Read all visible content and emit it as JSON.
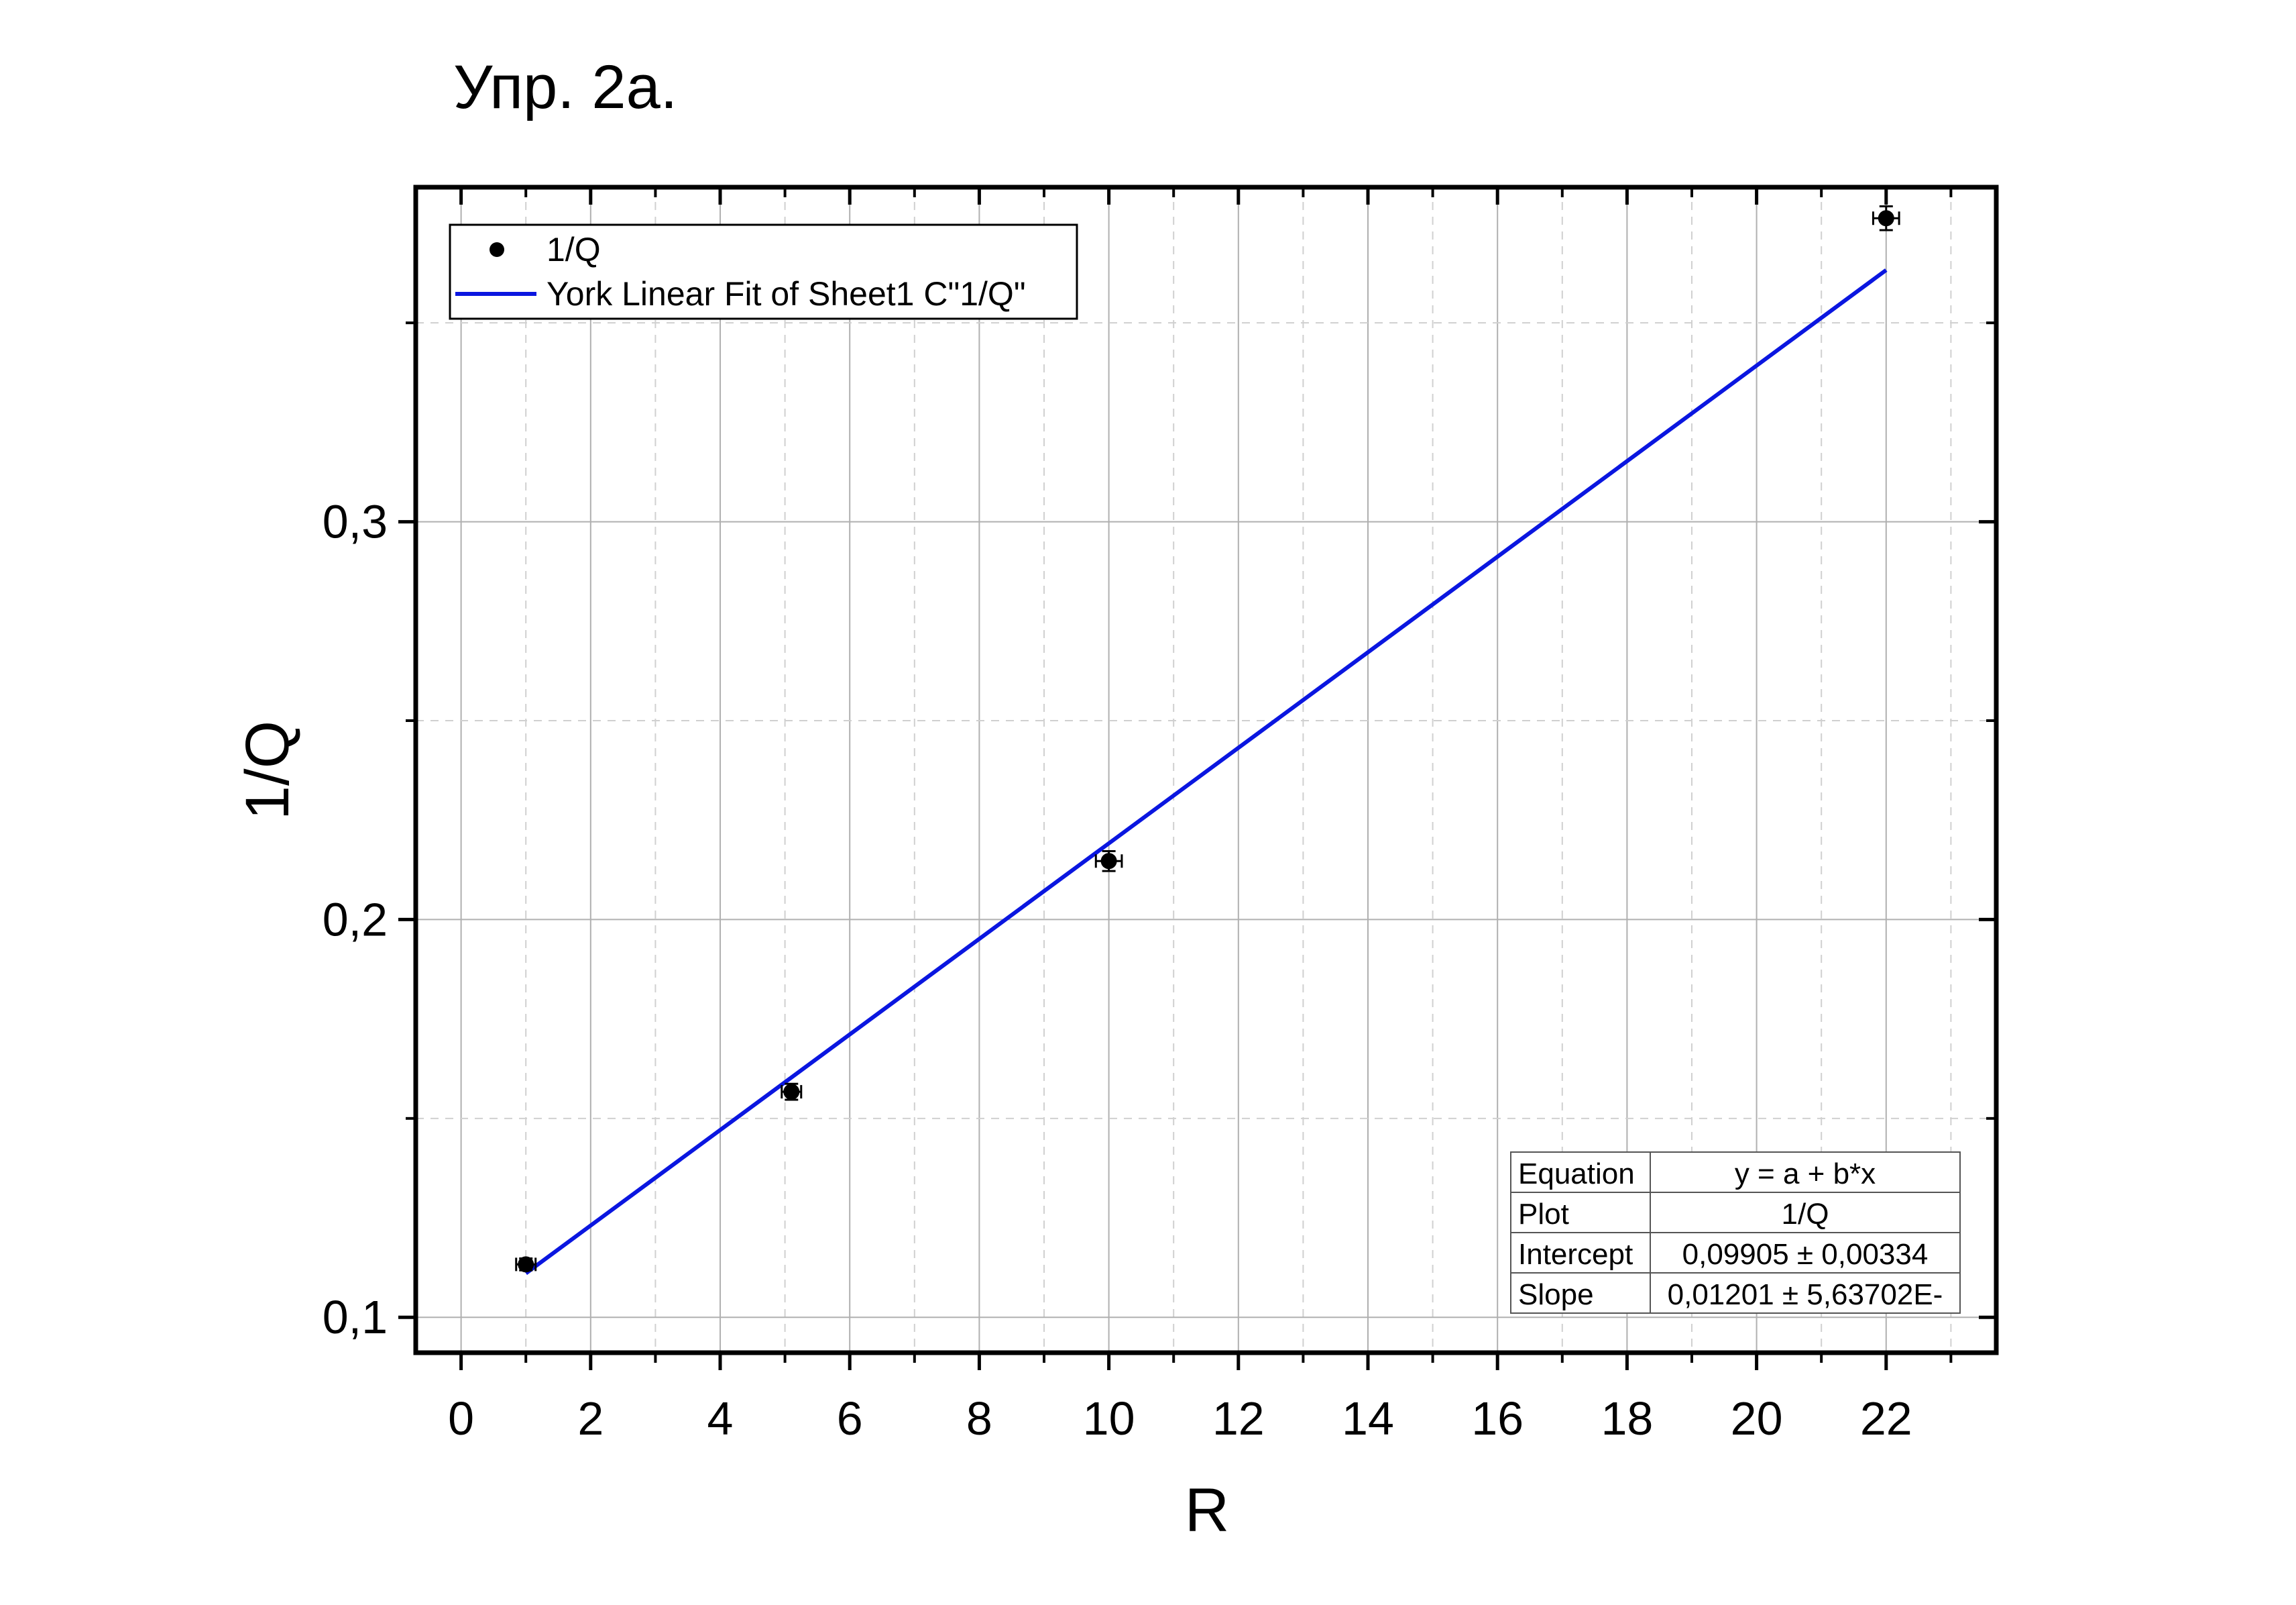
{
  "title": "Упр. 2а.",
  "chart_data": {
    "type": "scatter",
    "xlabel": "R",
    "ylabel": "1/Q",
    "xlim": [
      -0.7,
      23.7
    ],
    "ylim": [
      0.0911,
      0.3841
    ],
    "x_ticks": [
      0,
      2,
      4,
      6,
      8,
      10,
      12,
      14,
      16,
      18,
      20,
      22
    ],
    "x_tick_labels": [
      "0",
      "2",
      "4",
      "6",
      "8",
      "10",
      "12",
      "14",
      "16",
      "18",
      "20",
      "22"
    ],
    "y_ticks": [
      0.1,
      0.2,
      0.3
    ],
    "y_tick_labels": [
      "0,1",
      "0,2",
      "0,3"
    ],
    "y_minor_ticks": [
      0.15,
      0.25,
      0.35
    ],
    "grid": true,
    "legend_position": "top-left",
    "series": [
      {
        "name": "1/Q",
        "kind": "scatter",
        "color": "#000000",
        "x": [
          1.0,
          5.1,
          10.0,
          22.0
        ],
        "y": [
          0.1133,
          0.1567,
          0.2147,
          0.3763
        ],
        "x_err": [
          0.15,
          0.15,
          0.2,
          0.2
        ],
        "y_err": [
          0.0015,
          0.002,
          0.0025,
          0.003
        ]
      },
      {
        "name": "York Linear Fit of Sheet1 C\"1/Q\"",
        "kind": "line",
        "color": "#0a16e0",
        "x": [
          1.0,
          22.0
        ],
        "y": [
          0.11106,
          0.36327
        ]
      }
    ],
    "fit_table": {
      "rows": [
        [
          "Equation",
          "y = a + b*x"
        ],
        [
          "Plot",
          "1/Q"
        ],
        [
          "Intercept",
          "0,09905 ± 0,00334"
        ],
        [
          "Slope",
          "0,01201 ± 5,63702E-"
        ]
      ]
    }
  }
}
